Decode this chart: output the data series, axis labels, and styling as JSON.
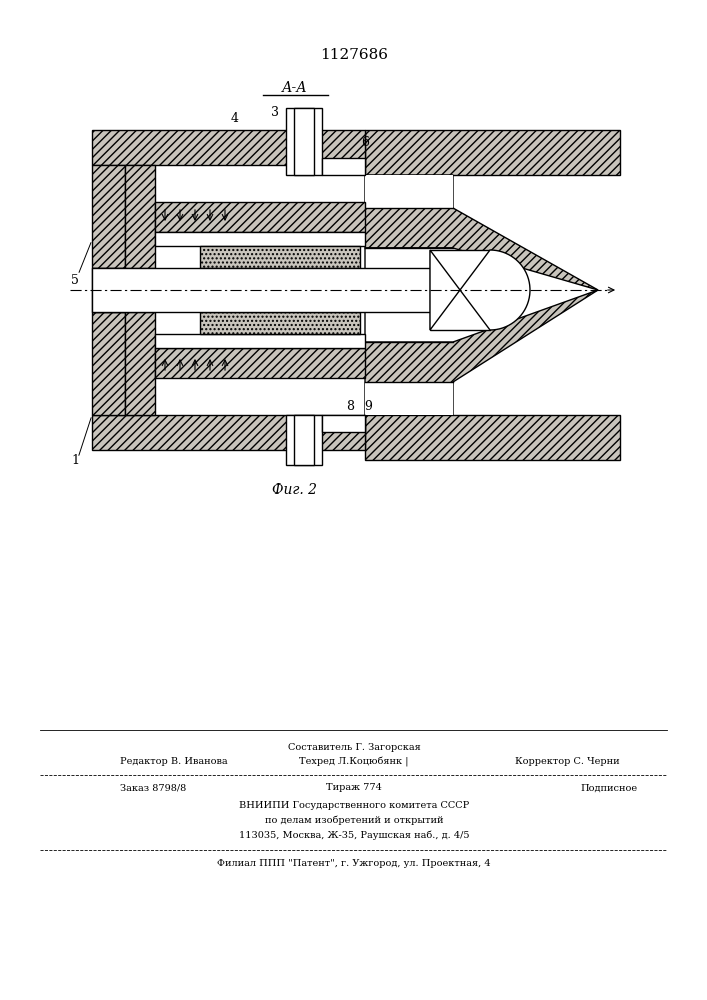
{
  "title_number": "1127686",
  "section_label": "А-А",
  "figure_label": "Фиг. 2",
  "hatch_color": "#000000",
  "cone_fc": "#c8c4bc",
  "white": "#ffffff",
  "dot_fc": "#c8c4bc",
  "line_color": "#000000",
  "bottom_texts": {
    "line1_left": "Редактор В. Иванова",
    "line1_center_top": "Составитель Г. Загорская",
    "line1_center_bot": "Техред Л.Коцюбянк |",
    "line1_right": "Корректор С. Черни",
    "line2_left": "Заказ 8798/8",
    "line2_center": "Тираж 774",
    "line2_right": "Подписное",
    "line3": "ВНИИПИ Государственного комитета СССР",
    "line4": "по делам изобретений и открытий",
    "line5": "113035, Москва, Ж-35, Раушская наб., д. 4/5",
    "line6": "Филиал ППП \"Патент\", г. Ужгород, ул. Проектная, 4"
  }
}
